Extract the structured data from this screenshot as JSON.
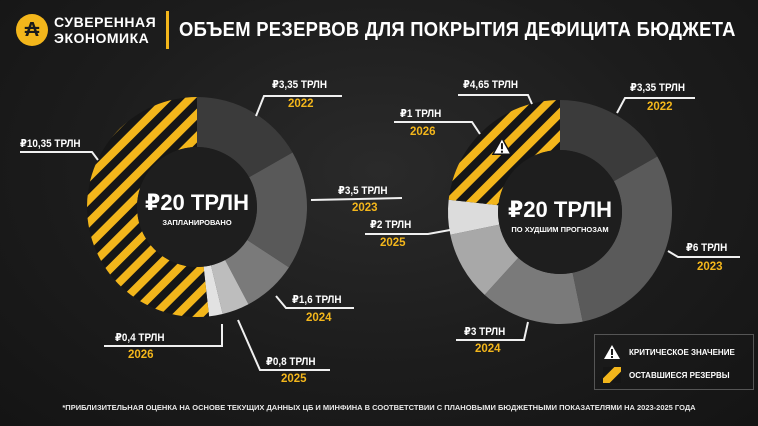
{
  "brand": {
    "line1": "СУВЕРЕННАЯ",
    "line2": "ЭКОНОМИКА"
  },
  "title": "ОБЪЕМ РЕЗЕРВОВ ДЛЯ ПОКРЫТИЯ ДЕФИЦИТА БЮДЖЕТА",
  "colors": {
    "accent": "#f3b61b",
    "background": "#1b1b1b"
  },
  "chart_data": [
    {
      "type": "pie",
      "center_value": "₽20 ТРЛН",
      "center_caption": "ЗАПЛАНИРОВАНО",
      "total": 20,
      "unit": "трлн руб.",
      "slices": [
        {
          "year": "2022",
          "value": 3.35,
          "label": "₽3,35 ТРЛН",
          "color": "#3b3b3b"
        },
        {
          "year": "2023",
          "value": 3.5,
          "label": "₽3,5 ТРЛН",
          "color": "#595959"
        },
        {
          "year": "2024",
          "value": 1.6,
          "label": "₽1,6 ТРЛН",
          "color": "#7a7a7a"
        },
        {
          "year": "2025",
          "value": 0.8,
          "label": "₽0,8 ТРЛН",
          "color": "#bdbdbd"
        },
        {
          "year": "2026",
          "value": 0.4,
          "label": "₽0,4 ТРЛН",
          "color": "#e2e2e2"
        },
        {
          "year": "",
          "value": 10.35,
          "label": "₽10,35 ТРЛН",
          "color": "hatch",
          "remaining": true
        }
      ]
    },
    {
      "type": "pie",
      "center_value": "₽20 ТРЛН",
      "center_caption": "ПО ХУДШИМ ПРОГНОЗАМ",
      "total": 20,
      "unit": "трлн руб.",
      "slices": [
        {
          "year": "2022",
          "value": 3.35,
          "label": "₽3,35 ТРЛН",
          "color": "#3b3b3b"
        },
        {
          "year": "2023",
          "value": 6,
          "label": "₽6 ТРЛН",
          "color": "#5a5a5a"
        },
        {
          "year": "2024",
          "value": 3,
          "label": "₽3 ТРЛН",
          "color": "#7a7a7a"
        },
        {
          "year": "2025",
          "value": 2,
          "label": "₽2 ТРЛН",
          "color": "#a8a8a8"
        },
        {
          "year": "2026",
          "value": 1,
          "label": "₽1 ТРЛН",
          "color": "#dcdcdc"
        },
        {
          "year": "",
          "value": 4.65,
          "label": "₽4,65 ТРЛН",
          "color": "hatch",
          "remaining": true,
          "critical": true
        }
      ]
    }
  ],
  "legend": {
    "critical": "КРИТИЧЕСКОЕ ЗНАЧЕНИЕ",
    "remaining": "ОСТАВШИЕСЯ РЕЗЕРВЫ"
  },
  "footnote": "*ПРИБЛИЗИТЕЛЬНАЯ ОЦЕНКА НА ОСНОВЕ ТЕКУЩИХ ДАННЫХ ЦБ И МИНФИНА В СООТВЕТСТВИИ С ПЛАНОВЫМИ БЮДЖЕТНЫМИ ПОКАЗАТЕЛЯМИ НА 2023-2025 ГОДА"
}
